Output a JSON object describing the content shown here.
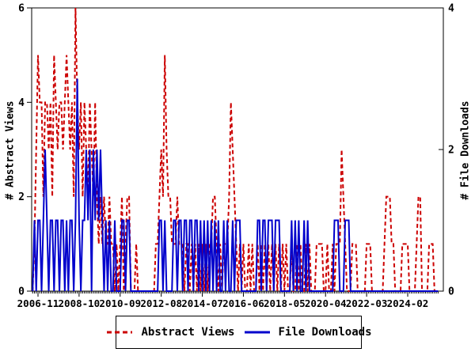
{
  "figure": {
    "background": "#ffffff",
    "axes": {
      "y_left": {
        "label": "# Abstract Views",
        "tick_labels": [
          "0",
          "2",
          "4",
          "6"
        ],
        "tick_values": [
          0,
          2,
          4,
          6
        ],
        "range": [
          0,
          6
        ]
      },
      "y_right": {
        "label": "# File Downloads",
        "tick_labels": [
          "0",
          "2",
          "4"
        ],
        "tick_values": [
          0,
          2,
          4
        ],
        "range": [
          0,
          4
        ]
      },
      "x": {
        "tick_labels": [
          "2006-11",
          "2008-10",
          "2010-09",
          "2012-08",
          "2014-07",
          "2016-06",
          "2018-05",
          "2020-04",
          "2022-03",
          "2024-02"
        ],
        "tick_month_indices": [
          3,
          26,
          49,
          72,
          95,
          118,
          141,
          164,
          187,
          210
        ],
        "minor_tick_every": "1 month"
      }
    },
    "legend": {
      "position": "bottom-center",
      "items": [
        {
          "label": "Abstract Views",
          "color": "#cc0000",
          "dashed": true
        },
        {
          "label": "File Downloads",
          "color": "#0000cc",
          "dashed": false
        }
      ]
    }
  },
  "chart_data": {
    "type": "line",
    "title": "",
    "xlabel": "",
    "ylabel_left": "# Abstract Views",
    "ylabel_right": "# File Downloads",
    "x_start": "2006-08",
    "x_step_months": 1,
    "n_points": 228,
    "ylim_left": [
      0,
      6
    ],
    "ylim_right": [
      0,
      4
    ],
    "grid": false,
    "x_ticks": [
      {
        "index": 3,
        "label": "2006-11"
      },
      {
        "index": 26,
        "label": "2008-10"
      },
      {
        "index": 49,
        "label": "2010-09"
      },
      {
        "index": 72,
        "label": "2012-08"
      },
      {
        "index": 95,
        "label": "2014-07"
      },
      {
        "index": 118,
        "label": "2016-06"
      },
      {
        "index": 141,
        "label": "2018-05"
      },
      {
        "index": 164,
        "label": "2020-04"
      },
      {
        "index": 187,
        "label": "2022-03"
      },
      {
        "index": 210,
        "label": "2024-02"
      }
    ],
    "series": [
      {
        "name": "Abstract Views",
        "axis": "left",
        "color": "#cc0000",
        "style": "dashed",
        "values": [
          0,
          1,
          3,
          5,
          4,
          4,
          2,
          4,
          4,
          3,
          4,
          2,
          5,
          4,
          3,
          4,
          4,
          3,
          4,
          5,
          4,
          3,
          4,
          2,
          6,
          4,
          3,
          4,
          2,
          4,
          3,
          2,
          4,
          3,
          2,
          4,
          2,
          1,
          2,
          1,
          2,
          1,
          1,
          2,
          1,
          1,
          0,
          1,
          0,
          1,
          2,
          0,
          1,
          2,
          2,
          0,
          0,
          0,
          1,
          0,
          0,
          0,
          0,
          0,
          0,
          0,
          0,
          0,
          0,
          1,
          1,
          2,
          3,
          2,
          5,
          3,
          2,
          2,
          1,
          1,
          1,
          2,
          1,
          1,
          1,
          0,
          1,
          1,
          0,
          1,
          0,
          1,
          0,
          1,
          0,
          1,
          0,
          1,
          0,
          1,
          1,
          2,
          2,
          1,
          0,
          1,
          0,
          1,
          1,
          1,
          2,
          4,
          3,
          2,
          1,
          0,
          1,
          0,
          1,
          0,
          0,
          1,
          0,
          1,
          0,
          0,
          1,
          0,
          1,
          0,
          1,
          0,
          1,
          0,
          1,
          0,
          1,
          0,
          1,
          0,
          1,
          0,
          1,
          0,
          0,
          1,
          0,
          0,
          1,
          0,
          1,
          0,
          0,
          1,
          0,
          1,
          0,
          0,
          0,
          1,
          1,
          1,
          1,
          0,
          0,
          1,
          0,
          0,
          1,
          0,
          1,
          1,
          1,
          3,
          2,
          1,
          0,
          0,
          0,
          1,
          1,
          1,
          0,
          0,
          0,
          0,
          0,
          1,
          1,
          1,
          0,
          0,
          0,
          0,
          0,
          0,
          0,
          1,
          2,
          2,
          2,
          1,
          1,
          0,
          0,
          0,
          0,
          1,
          1,
          1,
          1,
          0,
          0,
          0,
          0,
          1,
          2,
          2,
          0,
          0,
          0,
          0,
          1,
          1,
          1,
          0,
          0,
          0
        ]
      },
      {
        "name": "File Downloads",
        "axis": "right",
        "color": "#0000cc",
        "style": "solid",
        "values": [
          0,
          1,
          0,
          1,
          1,
          0,
          1,
          2,
          1,
          0,
          1,
          1,
          0,
          1,
          1,
          0,
          1,
          1,
          0,
          1,
          0,
          1,
          1,
          0,
          1,
          3,
          1,
          0,
          1,
          1,
          2,
          1,
          2,
          0,
          2,
          1,
          2,
          1,
          2,
          1,
          0,
          1,
          0,
          1,
          0,
          0,
          1,
          0,
          0,
          0,
          1,
          1,
          0,
          1,
          1,
          0,
          0,
          0,
          0,
          0,
          0,
          0,
          0,
          0,
          0,
          0,
          0,
          0,
          0,
          0,
          0,
          1,
          1,
          0,
          1,
          0,
          0,
          0,
          0,
          1,
          1,
          0,
          1,
          1,
          0,
          1,
          1,
          0,
          1,
          1,
          0,
          1,
          1,
          0,
          1,
          0,
          1,
          0,
          1,
          0,
          1,
          0,
          1,
          0,
          1,
          0,
          0,
          1,
          0,
          1,
          0,
          0,
          1,
          0,
          1,
          1,
          1,
          0,
          0,
          0,
          0,
          0,
          0,
          0,
          0,
          0,
          1,
          1,
          0,
          1,
          1,
          0,
          1,
          1,
          1,
          0,
          1,
          1,
          1,
          0,
          0,
          0,
          0,
          0,
          0,
          1,
          0,
          1,
          0,
          1,
          0,
          0,
          1,
          0,
          1,
          0,
          0,
          0,
          0,
          0,
          0,
          0,
          0,
          0,
          0,
          0,
          0,
          0,
          0,
          1,
          1,
          1,
          0,
          0,
          0,
          1,
          1,
          1,
          0,
          0,
          0,
          0,
          0,
          0,
          0,
          0,
          0,
          0,
          0,
          0,
          0,
          0,
          0,
          0,
          0,
          0,
          0,
          0,
          0,
          0,
          0,
          0,
          0,
          0,
          0,
          0,
          0,
          0,
          0,
          0,
          0,
          0,
          0,
          0,
          0,
          0,
          0,
          0,
          0,
          0,
          0,
          0,
          0,
          0,
          0,
          0,
          0,
          0
        ]
      }
    ]
  }
}
